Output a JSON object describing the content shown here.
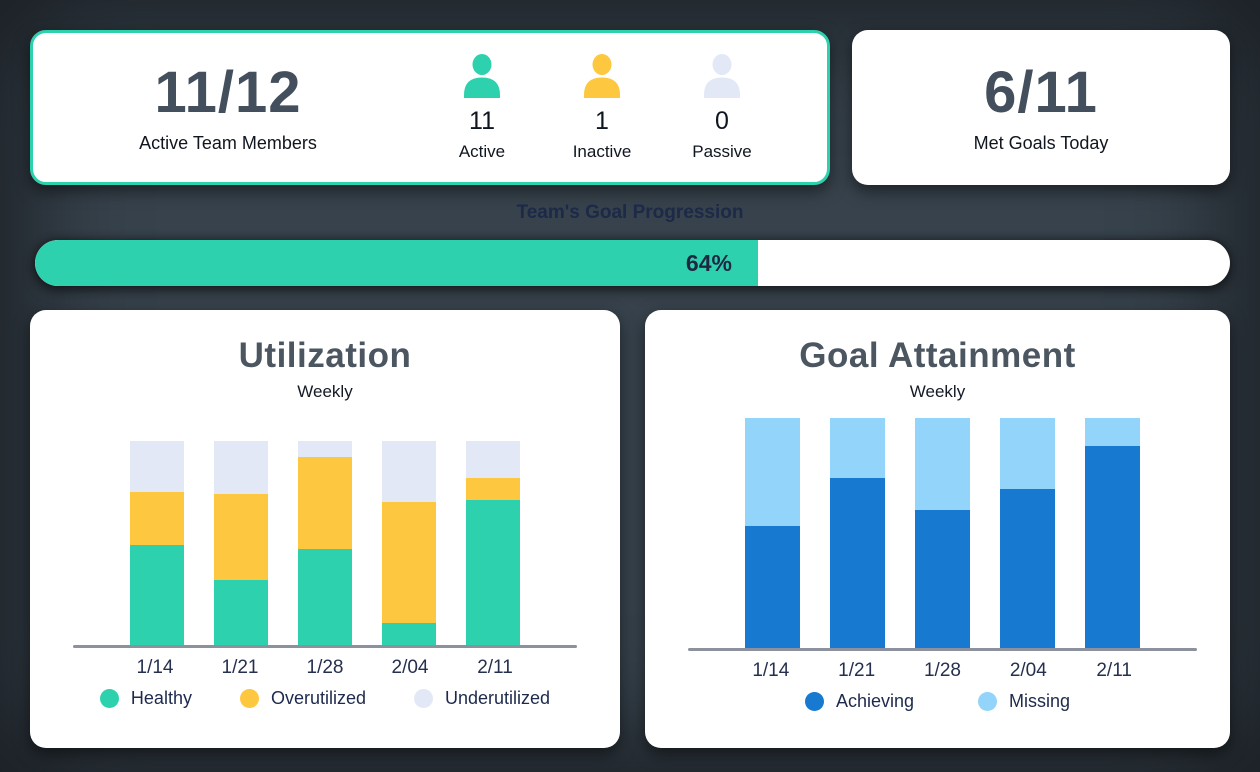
{
  "colors": {
    "background": "#37424c",
    "accent_teal": "#2ed1ae",
    "accent_yellow": "#fdc740",
    "accent_lavender": "#e2e8f6",
    "accent_blue_dark": "#1779d0",
    "accent_blue_light": "#93d4fa"
  },
  "active_members_card": {
    "value": "11/12",
    "label": "Active Team Members",
    "stats": [
      {
        "name": "Active",
        "count": "11",
        "color": "#2ed1ae"
      },
      {
        "name": "Inactive",
        "count": "1",
        "color": "#fdc740"
      },
      {
        "name": "Passive",
        "count": "0",
        "color": "#e2e8f6"
      }
    ]
  },
  "met_goals_card": {
    "value": "6/11",
    "label": "Met Goals Today"
  },
  "progress": {
    "title": "Team's Goal Progression",
    "label": "64%",
    "percent": 64,
    "fill_color": "#2ed1ae"
  },
  "chart_data": [
    {
      "type": "bar",
      "stacked": true,
      "title": "Utilization",
      "subtitle": "Weekly",
      "categories": [
        "1/14",
        "1/21",
        "1/28",
        "2/04",
        "2/11"
      ],
      "series": [
        {
          "name": "Healthy",
          "color": "#2ed1ae",
          "values": [
            49,
            32,
            47,
            11,
            71
          ]
        },
        {
          "name": "Overutilized",
          "color": "#fdc740",
          "values": [
            26,
            42,
            45,
            59,
            11
          ]
        },
        {
          "name": "Underutilized",
          "color": "#e2e8f6",
          "values": [
            25,
            26,
            8,
            30,
            18
          ]
        }
      ],
      "unit": "percent",
      "ylim": [
        0,
        100
      ],
      "grid": false,
      "legend_position": "bottom"
    },
    {
      "type": "bar",
      "stacked": true,
      "title": "Goal Attainment",
      "subtitle": "Weekly",
      "categories": [
        "1/14",
        "1/21",
        "1/28",
        "2/04",
        "2/11"
      ],
      "series": [
        {
          "name": "Achieving",
          "color": "#1779d0",
          "values": [
            53,
            74,
            60,
            69,
            88
          ]
        },
        {
          "name": "Missing",
          "color": "#93d4fa",
          "values": [
            47,
            26,
            40,
            31,
            12
          ]
        }
      ],
      "unit": "percent",
      "ylim": [
        0,
        100
      ],
      "grid": false,
      "legend_position": "bottom"
    }
  ]
}
